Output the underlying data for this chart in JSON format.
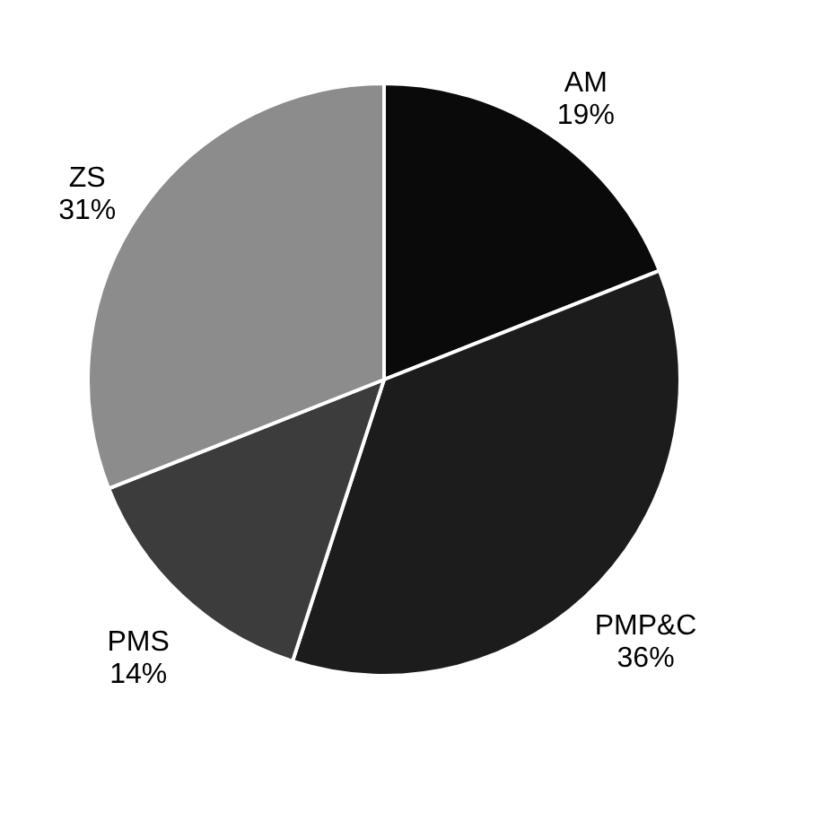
{
  "chart_data": {
    "type": "pie",
    "categories": [
      "AM",
      "PMP&C",
      "PMS",
      "ZS"
    ],
    "values": [
      19,
      36,
      14,
      31
    ],
    "value_labels": [
      "19%",
      "36%",
      "14%",
      "31%"
    ],
    "colors": [
      "#0a0a0a",
      "#1c1c1c",
      "#3c3c3c",
      "#8c8c8c"
    ]
  }
}
